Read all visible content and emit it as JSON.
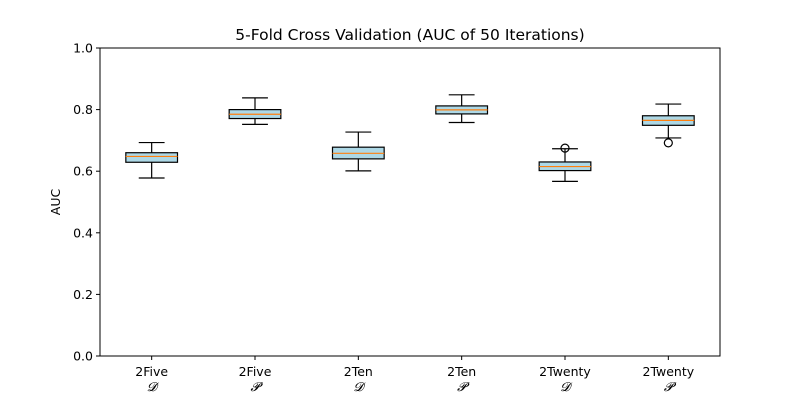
{
  "chart_data": {
    "type": "boxplot",
    "title": "5-Fold Cross Validation (AUC of 50 Iterations)",
    "xlabel": "",
    "ylabel": "AUC",
    "ylim": [
      0.0,
      1.0
    ],
    "yticks": [
      "0.0",
      "0.2",
      "0.4",
      "0.6",
      "0.8",
      "1.0"
    ],
    "grid": false,
    "colors": {
      "box_fill": "#add8e6",
      "median": "#ff7f0e",
      "line": "#000000"
    },
    "categories": [
      {
        "label": "2Five",
        "sub": "𝓓"
      },
      {
        "label": "2Five",
        "sub": "𝓟"
      },
      {
        "label": "2Ten",
        "sub": "𝓓"
      },
      {
        "label": "2Ten",
        "sub": "𝓟"
      },
      {
        "label": "2Twenty",
        "sub": "𝓓"
      },
      {
        "label": "2Twenty",
        "sub": "𝓟"
      }
    ],
    "boxes": [
      {
        "whislo": 0.578,
        "q1": 0.629,
        "med": 0.648,
        "q3": 0.66,
        "whishi": 0.693,
        "fliers": []
      },
      {
        "whislo": 0.752,
        "q1": 0.771,
        "med": 0.785,
        "q3": 0.8,
        "whishi": 0.838,
        "fliers": []
      },
      {
        "whislo": 0.601,
        "q1": 0.64,
        "med": 0.658,
        "q3": 0.678,
        "whishi": 0.727,
        "fliers": []
      },
      {
        "whislo": 0.758,
        "q1": 0.786,
        "med": 0.799,
        "q3": 0.812,
        "whishi": 0.848,
        "fliers": []
      },
      {
        "whislo": 0.567,
        "q1": 0.602,
        "med": 0.615,
        "q3": 0.63,
        "whishi": 0.673,
        "fliers": [
          0.675
        ]
      },
      {
        "whislo": 0.708,
        "q1": 0.749,
        "med": 0.765,
        "q3": 0.78,
        "whishi": 0.818,
        "fliers": [
          0.692
        ]
      }
    ]
  }
}
